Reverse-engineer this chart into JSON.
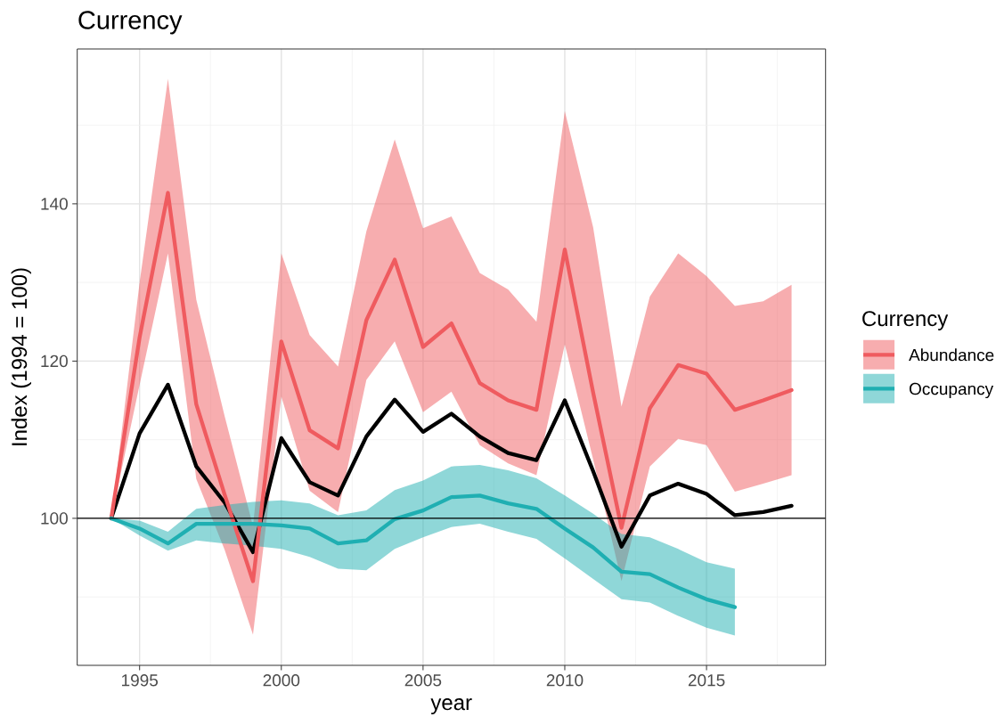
{
  "chart_data": {
    "type": "line",
    "title": "Currency",
    "xlabel": "year",
    "ylabel": "Index (1994 = 100)",
    "legend_title": "Currency",
    "x": [
      1994,
      1995,
      1996,
      1997,
      1998,
      1999,
      2000,
      2001,
      2002,
      2003,
      2004,
      2005,
      2006,
      2007,
      2008,
      2009,
      2010,
      2011,
      2012,
      2013,
      2014,
      2015,
      2016,
      2017,
      2018
    ],
    "series": [
      {
        "color": "#000000",
        "values": [
          100,
          110.8,
          117.0,
          106.6,
          102.0,
          95.7,
          110.2,
          104.6,
          102.9,
          110.4,
          115.1,
          111.0,
          113.3,
          110.4,
          108.3,
          107.4,
          115.0,
          106.0,
          96.4,
          102.9,
          104.4,
          103.1,
          100.4,
          100.8,
          101.6
        ]
      },
      {
        "name": "Abundance",
        "color": "#EF5B5F",
        "values": [
          100,
          123.0,
          141.4,
          114.5,
          103.0,
          92.0,
          122.5,
          111.2,
          108.9,
          125.2,
          132.9,
          121.8,
          124.8,
          117.2,
          115.0,
          113.8,
          134.2,
          116.0,
          98.8,
          114.0,
          119.5,
          118.4,
          113.8,
          115.0,
          116.3
        ],
        "upper": [
          100,
          130.0,
          155.9,
          127.8,
          113.0,
          99.0,
          133.7,
          123.3,
          119.3,
          136.5,
          148.2,
          136.9,
          138.4,
          131.2,
          129.1,
          125.0,
          151.8,
          137.0,
          114.2,
          128.2,
          133.7,
          130.8,
          127.0,
          127.6,
          129.7
        ],
        "lower": [
          100,
          117.0,
          133.7,
          105.0,
          96.0,
          85.2,
          115.5,
          103.5,
          100.8,
          117.6,
          122.5,
          113.5,
          116.1,
          109.3,
          107.0,
          105.5,
          122.1,
          107.5,
          92.0,
          106.6,
          110.1,
          109.3,
          103.4,
          104.4,
          105.5
        ]
      },
      {
        "name": "Occupancy",
        "color": "#1FAFB2",
        "values": [
          100,
          98.7,
          96.8,
          99.3,
          99.3,
          99.3,
          99.1,
          98.7,
          96.8,
          97.2,
          99.9,
          101.0,
          102.7,
          102.9,
          101.9,
          101.2,
          98.7,
          96.3,
          93.2,
          92.9,
          91.2,
          89.7,
          88.7,
          null,
          null
        ],
        "upper": [
          100,
          99.7,
          98.3,
          101.2,
          101.7,
          102.1,
          102.3,
          101.9,
          100.4,
          101.0,
          103.6,
          104.8,
          106.6,
          106.8,
          106.1,
          105.1,
          102.9,
          100.6,
          98.0,
          97.6,
          96.1,
          94.4,
          93.6,
          null,
          null
        ],
        "lower": [
          100,
          97.8,
          95.9,
          97.2,
          96.8,
          96.5,
          96.1,
          95.1,
          93.6,
          93.4,
          96.1,
          97.6,
          98.9,
          99.3,
          98.3,
          97.4,
          94.9,
          92.3,
          89.7,
          89.3,
          87.6,
          86.1,
          85.1,
          null,
          null
        ]
      }
    ],
    "xlim": [
      1992.8,
      2019.2
    ],
    "ylim": [
      81.3,
      159.7
    ],
    "xticks": [
      1995,
      2000,
      2005,
      2010,
      2015
    ],
    "yticks": [
      100,
      120,
      140
    ],
    "grid": true,
    "legend": "right",
    "ref_lines": [
      {
        "axis": "y",
        "value": 100,
        "color": "#000000"
      }
    ]
  }
}
